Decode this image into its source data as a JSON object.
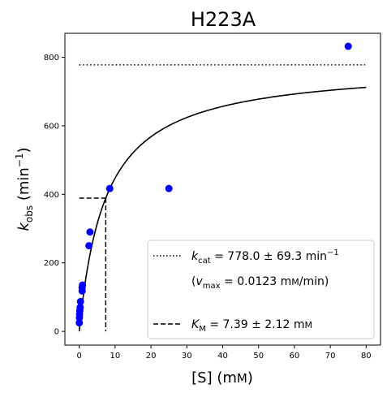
{
  "chart_data": {
    "type": "scatter",
    "title": "H223A",
    "xlabel": "[S] (mм)",
    "ylabel": "k_obs (min⁻¹)",
    "xlim": [
      -4,
      84
    ],
    "ylim": [
      -40,
      870
    ],
    "x_ticks": [
      0,
      10,
      20,
      30,
      40,
      50,
      60,
      70,
      80
    ],
    "y_ticks": [
      0,
      200,
      400,
      600,
      800
    ],
    "grid": false,
    "legend_placement": "lower-right",
    "series": [
      {
        "type": "scatter",
        "color": "#0000ff",
        "x": [
          0.02,
          0.05,
          0.1,
          0.15,
          0.25,
          0.35,
          0.8,
          0.8,
          0.9,
          2.7,
          3.0,
          8.5,
          25.0,
          75.0
        ],
        "y": [
          25,
          40,
          50,
          60,
          70,
          87,
          118,
          128,
          135,
          250,
          290,
          417,
          417,
          832
        ]
      },
      {
        "type": "line",
        "color": "#000000",
        "model": "michaelis-menten",
        "kcat": 778.0,
        "km": 7.39,
        "x_range": [
          0,
          80
        ]
      },
      {
        "type": "hline",
        "style": "dotted",
        "color": "#000000",
        "y": 778.0,
        "x_range": [
          0,
          80
        ]
      },
      {
        "type": "km-marker",
        "style": "dashed",
        "color": "#000000",
        "km": 7.39,
        "half_vmax": 389
      }
    ],
    "legend": [
      {
        "style": "dotted",
        "label": "k_cat = 778.0 ± 69.3 min⁻¹"
      },
      {
        "style": "none",
        "label": "(v_max = 0.0123 mм/min)"
      },
      {
        "style": "dashed",
        "label": "K_M = 7.39 ± 2.12 mм"
      }
    ]
  }
}
